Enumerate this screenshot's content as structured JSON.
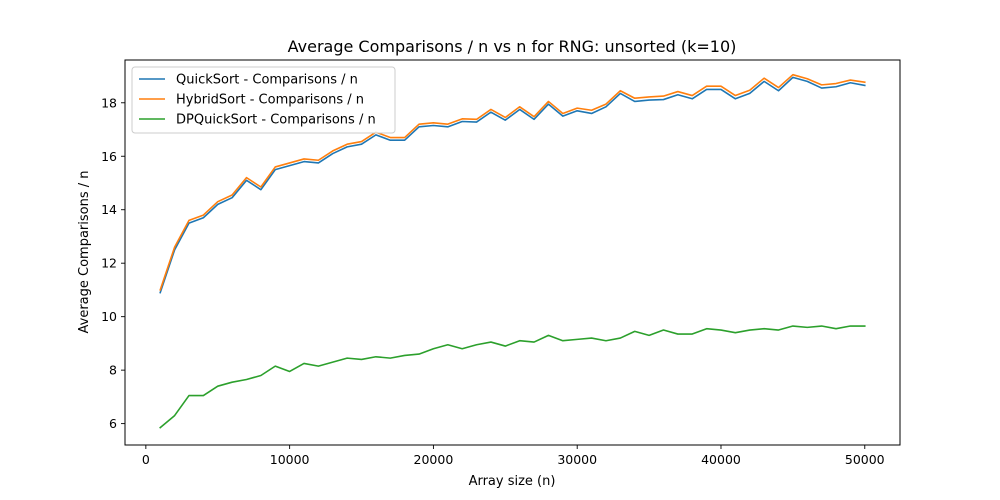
{
  "chart_data": {
    "type": "line",
    "title": "Average Comparisons / n vs n for RNG: unsorted (k=10)",
    "xlabel": "Array size (n)",
    "ylabel": "Average Comparisons / n",
    "xlim": [
      -1450,
      52450
    ],
    "ylim": [
      5.2,
      19.6
    ],
    "xticks": [
      0,
      10000,
      20000,
      30000,
      40000,
      50000
    ],
    "xtick_labels": [
      "0",
      "10000",
      "20000",
      "30000",
      "40000",
      "50000"
    ],
    "yticks": [
      6,
      8,
      10,
      12,
      14,
      16,
      18
    ],
    "ytick_labels": [
      "6",
      "8",
      "10",
      "12",
      "14",
      "16",
      "18"
    ],
    "grid": false,
    "legend_position": "top-left",
    "x": [
      1000,
      2000,
      3000,
      4000,
      5000,
      6000,
      7000,
      8000,
      9000,
      10000,
      11000,
      12000,
      13000,
      14000,
      15000,
      16000,
      17000,
      18000,
      19000,
      20000,
      21000,
      22000,
      23000,
      24000,
      25000,
      26000,
      27000,
      28000,
      29000,
      30000,
      31000,
      32000,
      33000,
      34000,
      35000,
      36000,
      37000,
      38000,
      39000,
      40000,
      41000,
      42000,
      43000,
      44000,
      45000,
      46000,
      47000,
      48000,
      49000,
      50000
    ],
    "series": [
      {
        "name": "QuickSort - Comparisons / n",
        "color": "#1f77b4",
        "values": [
          10.9,
          12.5,
          13.5,
          13.7,
          14.2,
          14.45,
          15.1,
          14.75,
          15.5,
          15.65,
          15.8,
          15.75,
          16.1,
          16.35,
          16.45,
          16.8,
          16.6,
          16.6,
          17.1,
          17.15,
          17.1,
          17.3,
          17.28,
          17.65,
          17.35,
          17.75,
          17.38,
          17.95,
          17.5,
          17.7,
          17.6,
          17.85,
          18.35,
          18.05,
          18.1,
          18.12,
          18.3,
          18.15,
          18.5,
          18.5,
          18.15,
          18.35,
          18.8,
          18.45,
          18.95,
          18.8,
          18.55,
          18.6,
          18.75,
          18.65
        ]
      },
      {
        "name": "HybridSort - Comparisons / n",
        "color": "#ff7f0e",
        "values": [
          11.0,
          12.6,
          13.6,
          13.8,
          14.3,
          14.55,
          15.2,
          14.85,
          15.6,
          15.75,
          15.9,
          15.85,
          16.2,
          16.45,
          16.55,
          16.9,
          16.7,
          16.7,
          17.2,
          17.25,
          17.2,
          17.4,
          17.38,
          17.75,
          17.45,
          17.85,
          17.48,
          18.05,
          17.6,
          17.8,
          17.72,
          17.95,
          18.45,
          18.17,
          18.22,
          18.25,
          18.42,
          18.27,
          18.62,
          18.62,
          18.27,
          18.47,
          18.92,
          18.57,
          19.05,
          18.9,
          18.67,
          18.72,
          18.85,
          18.77
        ]
      },
      {
        "name": "DPQuickSort - Comparisons / n",
        "color": "#2ca02c",
        "values": [
          5.85,
          6.3,
          7.05,
          7.05,
          7.4,
          7.55,
          7.65,
          7.8,
          8.15,
          7.95,
          8.25,
          8.15,
          8.3,
          8.45,
          8.4,
          8.5,
          8.45,
          8.55,
          8.6,
          8.8,
          8.95,
          8.8,
          8.95,
          9.05,
          8.9,
          9.1,
          9.05,
          9.3,
          9.1,
          9.15,
          9.2,
          9.1,
          9.2,
          9.45,
          9.3,
          9.5,
          9.35,
          9.35,
          9.55,
          9.5,
          9.4,
          9.5,
          9.55,
          9.5,
          9.65,
          9.6,
          9.65,
          9.55,
          9.65,
          9.65
        ]
      }
    ]
  }
}
